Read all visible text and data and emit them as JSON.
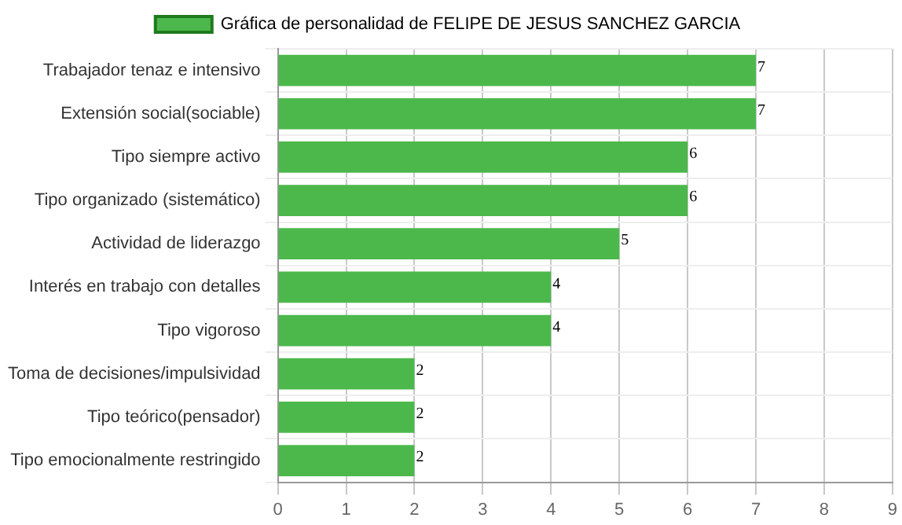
{
  "chart_data": {
    "type": "bar",
    "orientation": "horizontal",
    "categories": [
      "Trabajador tenaz e intensivo",
      "Extensión social(sociable)",
      "Tipo siempre activo",
      "Tipo organizado (sistemático)",
      "Actividad de liderazgo",
      "Interés en trabajo con detalles",
      "Tipo vigoroso",
      "Toma de decisiones/impulsividad",
      "Tipo teórico(pensador)",
      "Tipo emocionalmente restringido"
    ],
    "series": [
      {
        "name": "Gráfica de personalidad de FELIPE DE JESUS SANCHEZ GARCIA",
        "color": "#4cb84c",
        "values": [
          7,
          7,
          6,
          6,
          5,
          4,
          4,
          2,
          2,
          2
        ]
      }
    ],
    "xlim": [
      0,
      9
    ],
    "xticks": [
      0,
      1,
      2,
      3,
      4,
      5,
      6,
      7,
      8,
      9
    ],
    "grid": true,
    "legend": "top",
    "data_labels": true
  }
}
